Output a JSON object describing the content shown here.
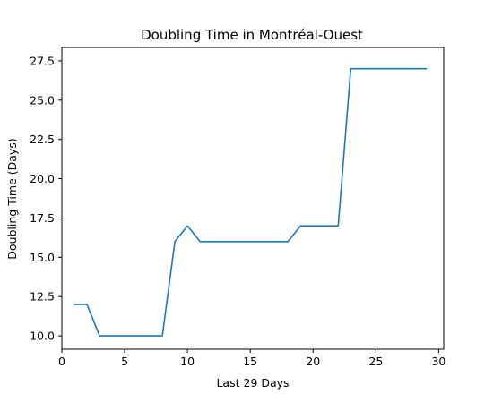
{
  "chart_data": {
    "type": "line",
    "title": "Doubling Time in  Montréal-Ouest",
    "xlabel": "Last 29 Days",
    "ylabel": "Doubling Time (Days)",
    "xlim": [
      0,
      30.4
    ],
    "ylim": [
      9.15,
      28.35
    ],
    "x_ticks": [
      0,
      5,
      10,
      15,
      20,
      25,
      30
    ],
    "y_ticks": [
      10.0,
      12.5,
      15.0,
      17.5,
      20.0,
      22.5,
      25.0,
      27.5
    ],
    "x_tick_labels": [
      "0",
      "5",
      "10",
      "15",
      "20",
      "25",
      "30"
    ],
    "y_tick_labels": [
      "10.0",
      "12.5",
      "15.0",
      "17.5",
      "20.0",
      "22.5",
      "25.0",
      "27.5"
    ],
    "grid": false,
    "series": [
      {
        "color": "#1f77b4",
        "x": [
          1,
          2,
          3,
          4,
          5,
          6,
          7,
          8,
          9,
          10,
          11,
          12,
          13,
          14,
          15,
          16,
          17,
          18,
          19,
          20,
          21,
          22,
          23,
          24,
          25,
          26,
          27,
          28,
          29
        ],
        "values": [
          12,
          12,
          10,
          10,
          10,
          10,
          10,
          10,
          16,
          17,
          16,
          16,
          16,
          16,
          16,
          16,
          16,
          16,
          17,
          17,
          17,
          17,
          27,
          27,
          27,
          27,
          27,
          27,
          27
        ]
      }
    ]
  }
}
